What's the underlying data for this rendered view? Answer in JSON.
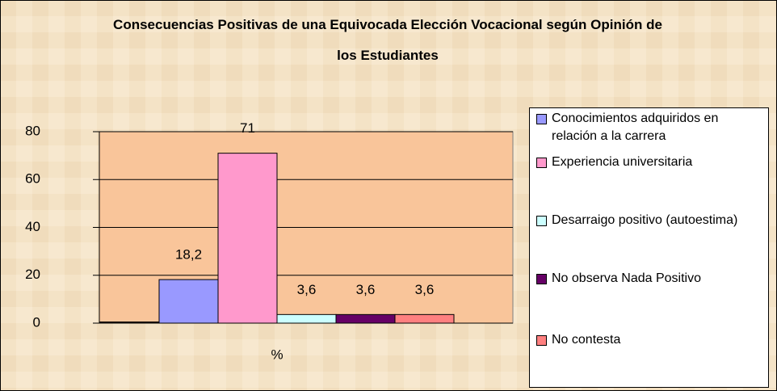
{
  "chart_data": {
    "type": "bar",
    "title": "Consecuencias Positivas de una Equivocada Elección Vocacional según Opinión de los Estudiantes",
    "categories": [
      "%"
    ],
    "series": [
      {
        "name": null,
        "color": "#3a2a1a",
        "values": [
          0.5
        ]
      },
      {
        "name": "Conocimientos adquiridos en relación a la carrera",
        "color": "#9999ff",
        "values": [
          18.2
        ],
        "value_labels": [
          "18,2"
        ]
      },
      {
        "name": "Experiencia universitaria",
        "color": "#ff99cc",
        "values": [
          71
        ],
        "value_labels": [
          "71"
        ]
      },
      {
        "name": "Desarraigo positivo (autoestima)",
        "color": "#ccffff",
        "values": [
          3.6
        ],
        "value_labels": [
          "3,6"
        ]
      },
      {
        "name": "No observa  Nada Positivo",
        "color": "#660066",
        "values": [
          3.6
        ],
        "value_labels": [
          "3,6"
        ]
      },
      {
        "name": "No contesta",
        "color": "#ff8080",
        "values": [
          3.6
        ],
        "value_labels": [
          "3,6"
        ]
      }
    ],
    "ylim": [
      0,
      80
    ],
    "yticks": [
      0,
      20,
      40,
      60,
      80
    ],
    "grid": true,
    "legend": "right"
  }
}
